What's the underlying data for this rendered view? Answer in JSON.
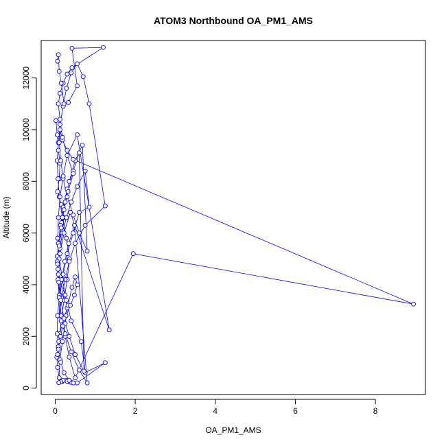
{
  "chart_data": {
    "type": "line",
    "title": "ATOM3 Northbound OA_PM1_AMS",
    "xlabel": "OA_PM1_AMS",
    "ylabel": "Altitude (m)",
    "xlim": [
      -0.35,
      9.25
    ],
    "ylim": [
      -250,
      13450
    ],
    "xticks": [
      0,
      2,
      4,
      6,
      8
    ],
    "yticks": [
      0,
      2000,
      4000,
      6000,
      8000,
      10000,
      12000
    ],
    "xtick_labels": [
      "0",
      "2",
      "4",
      "6",
      "8"
    ],
    "ytick_labels": [
      "0",
      "2000",
      "4000",
      "6000",
      "8000",
      "10000",
      "12000"
    ],
    "grid": false,
    "line_color": "#0000ff",
    "marker": "open-circle",
    "series": [
      {
        "x": [
          0.02,
          0.05,
          0.08,
          0.12,
          0.1,
          0.06,
          0.15,
          0.22,
          0.18,
          0.09,
          0.05,
          0.07,
          0.13,
          0.25,
          0.3,
          0.2,
          0.11,
          0.08,
          0.04,
          0.06,
          0.1,
          0.17,
          0.28,
          0.35,
          0.4,
          0.45,
          0.3,
          0.2,
          0.14,
          0.09,
          0.12,
          0.18,
          0.25,
          0.32,
          0.42,
          0.5,
          0.55,
          0.48,
          0.38,
          0.27,
          0.19,
          0.13,
          0.08,
          0.06,
          0.09,
          0.15,
          0.22,
          0.3,
          0.36,
          0.28,
          0.18,
          0.1,
          0.07,
          0.05,
          0.08,
          0.12,
          0.2,
          0.28,
          0.4,
          0.55,
          0.7,
          0.85,
          1.25,
          0.75,
          0.5,
          0.35,
          0.25,
          0.16,
          0.1,
          0.12,
          0.2,
          0.3,
          0.45,
          0.6,
          0.85,
          0.75,
          0.55,
          0.4,
          0.28,
          0.18,
          0.12,
          0.08,
          0.1,
          0.16,
          0.25,
          0.35,
          0.5,
          0.68,
          0.8,
          0.6,
          0.45,
          0.3,
          0.2,
          0.14,
          0.1,
          0.12,
          0.18,
          0.3,
          0.45,
          8.95,
          1.95,
          0.5,
          0.35,
          0.25,
          0.15,
          0.1,
          0.08,
          0.12,
          0.22,
          0.38,
          1.35,
          0.55,
          0.3,
          0.2,
          0.12,
          0.08,
          0.06,
          0.1,
          0.18,
          0.28,
          0.4,
          0.65,
          0.75,
          1.25,
          0.55,
          0.35,
          0.22,
          0.14,
          0.08,
          0.05,
          0.06,
          0.1,
          0.16,
          0.24,
          0.34,
          0.48,
          0.8,
          0.6,
          0.4,
          0.25,
          0.15,
          0.1,
          0.07,
          0.05,
          0.08,
          0.13,
          0.2,
          0.3,
          0.45,
          0.6,
          0.72,
          0.5,
          0.35,
          0.22,
          0.14,
          0.09,
          0.06,
          0.1,
          0.15,
          0.22,
          0.32,
          0.45,
          0.3,
          0.18,
          0.12,
          0.08,
          0.12,
          0.2,
          0.3,
          0.42,
          1.2,
          0.42,
          0.55,
          0.33,
          0.22,
          0.15,
          0.1,
          0.08,
          0.06
        ],
        "y": [
          10350,
          9800,
          9200,
          8700,
          8100,
          7600,
          7100,
          6600,
          6100,
          5600,
          5100,
          4600,
          4100,
          3600,
          3100,
          2600,
          2100,
          1600,
          1200,
          800,
          400,
          250,
          300,
          250,
          220,
          200,
          260,
          300,
          240,
          210,
          1100,
          1800,
          2500,
          3200,
          3900,
          4300,
          4000,
          3600,
          3200,
          2800,
          2400,
          2000,
          1600,
          1300,
          1800,
          2600,
          3400,
          4200,
          5000,
          5800,
          6600,
          7400,
          8100,
          8800,
          9500,
          10200,
          10900,
          11600,
          12200,
          12550,
          12050,
          11000,
          7050,
          6300,
          5600,
          4900,
          4200,
          3500,
          2800,
          3600,
          4400,
          5200,
          6000,
          6800,
          7000,
          8400,
          7800,
          7200,
          6600,
          6000,
          5400,
          4800,
          5600,
          6400,
          7200,
          8000,
          8800,
          9400,
          5300,
          6000,
          6700,
          7400,
          8100,
          8800,
          9500,
          10000,
          9600,
          9200,
          8850,
          3250,
          5200,
          400,
          1200,
          2000,
          2800,
          3600,
          4400,
          5200,
          6000,
          6800,
          2250,
          9800,
          9000,
          8200,
          7400,
          6600,
          5800,
          5000,
          4200,
          3400,
          2600,
          1800,
          600,
          980,
          200,
          300,
          600,
          1000,
          1500,
          2100,
          2800,
          3500,
          4200,
          4900,
          5600,
          6300,
          200,
          700,
          1400,
          2100,
          2800,
          3500,
          4200,
          4900,
          5600,
          6300,
          7000,
          7700,
          8400,
          9100,
          650,
          1300,
          2000,
          2700,
          3400,
          4100,
          4800,
          5500,
          6200,
          6900,
          7600,
          8300,
          9000,
          9700,
          10400,
          11000,
          11400,
          11800,
          12150,
          12400,
          13180,
          13150,
          11700,
          11050,
          11000,
          11800,
          12250,
          12900,
          12650
        ]
      }
    ]
  }
}
